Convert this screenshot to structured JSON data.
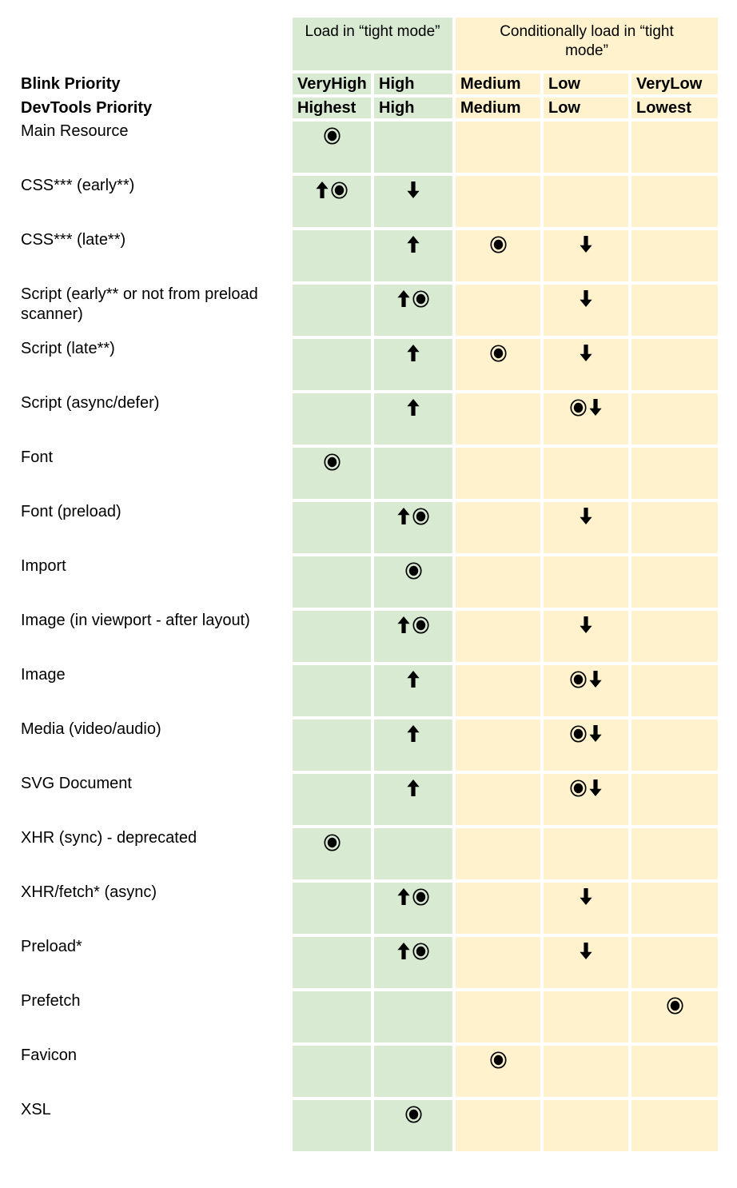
{
  "colors": {
    "tight_mode_green": "#d9ead3",
    "conditional_yellow": "#fff2cc",
    "text": "#000000",
    "background": "#ffffff"
  },
  "icons": {
    "up": "up-arrow-icon",
    "down": "down-arrow-icon",
    "target": "fisheye-icon"
  },
  "table": {
    "group_headers": [
      {
        "label": "Load in “tight mode”",
        "theme": "green",
        "span_columns": 2
      },
      {
        "label": "Conditionally load in “tight mode”",
        "theme": "yellow",
        "span_columns": 3
      }
    ],
    "columns": [
      {
        "id": "veryhigh",
        "theme": "green"
      },
      {
        "id": "high",
        "theme": "green"
      },
      {
        "id": "medium",
        "theme": "yellow"
      },
      {
        "id": "low",
        "theme": "yellow"
      },
      {
        "id": "verylow",
        "theme": "yellow"
      }
    ],
    "header_rows": [
      {
        "label": "Blink Priority",
        "cells": [
          "VeryHigh",
          "High",
          "Medium",
          "Low",
          "VeryLow"
        ]
      },
      {
        "label": "DevTools Priority",
        "cells": [
          "Highest",
          "High",
          "Medium",
          "Low",
          "Lowest"
        ]
      }
    ],
    "rows": [
      {
        "label": "Main Resource",
        "cells": [
          [
            "target"
          ],
          [],
          [],
          [],
          []
        ]
      },
      {
        "label": "CSS*** (early**)",
        "cells": [
          [
            "up",
            "target"
          ],
          [
            "down"
          ],
          [],
          [],
          []
        ]
      },
      {
        "label": "CSS*** (late**)",
        "cells": [
          [],
          [
            "up"
          ],
          [
            "target"
          ],
          [
            "down"
          ],
          []
        ]
      },
      {
        "label": "Script (early** or not from preload scanner)",
        "cells": [
          [],
          [
            "up",
            "target"
          ],
          [],
          [
            "down"
          ],
          []
        ]
      },
      {
        "label": "Script (late**)",
        "cells": [
          [],
          [
            "up"
          ],
          [
            "target"
          ],
          [
            "down"
          ],
          []
        ]
      },
      {
        "label": "Script (async/defer)",
        "cells": [
          [],
          [
            "up"
          ],
          [],
          [
            "target",
            "down"
          ],
          []
        ]
      },
      {
        "label": "Font",
        "cells": [
          [
            "target"
          ],
          [],
          [],
          [],
          []
        ]
      },
      {
        "label": "Font (preload)",
        "cells": [
          [],
          [
            "up",
            "target"
          ],
          [],
          [
            "down"
          ],
          []
        ]
      },
      {
        "label": "Import",
        "cells": [
          [],
          [
            "target"
          ],
          [],
          [],
          []
        ]
      },
      {
        "label": "Image (in viewport - after layout)",
        "cells": [
          [],
          [
            "up",
            "target"
          ],
          [],
          [
            "down"
          ],
          []
        ]
      },
      {
        "label": "Image",
        "cells": [
          [],
          [
            "up"
          ],
          [],
          [
            "target",
            "down"
          ],
          []
        ]
      },
      {
        "label": "Media (video/audio)",
        "cells": [
          [],
          [
            "up"
          ],
          [],
          [
            "target",
            "down"
          ],
          []
        ]
      },
      {
        "label": "SVG Document",
        "cells": [
          [],
          [
            "up"
          ],
          [],
          [
            "target",
            "down"
          ],
          []
        ]
      },
      {
        "label": "XHR (sync) - deprecated",
        "cells": [
          [
            "target"
          ],
          [],
          [],
          [],
          []
        ]
      },
      {
        "label": "XHR/fetch* (async)",
        "cells": [
          [],
          [
            "up",
            "target"
          ],
          [],
          [
            "down"
          ],
          []
        ]
      },
      {
        "label": "Preload*",
        "cells": [
          [],
          [
            "up",
            "target"
          ],
          [],
          [
            "down"
          ],
          []
        ]
      },
      {
        "label": "Prefetch",
        "cells": [
          [],
          [],
          [],
          [],
          [
            "target"
          ]
        ]
      },
      {
        "label": "Favicon",
        "cells": [
          [],
          [],
          [
            "target"
          ],
          [],
          []
        ]
      },
      {
        "label": "XSL",
        "cells": [
          [],
          [
            "target"
          ],
          [],
          [],
          []
        ]
      }
    ]
  }
}
